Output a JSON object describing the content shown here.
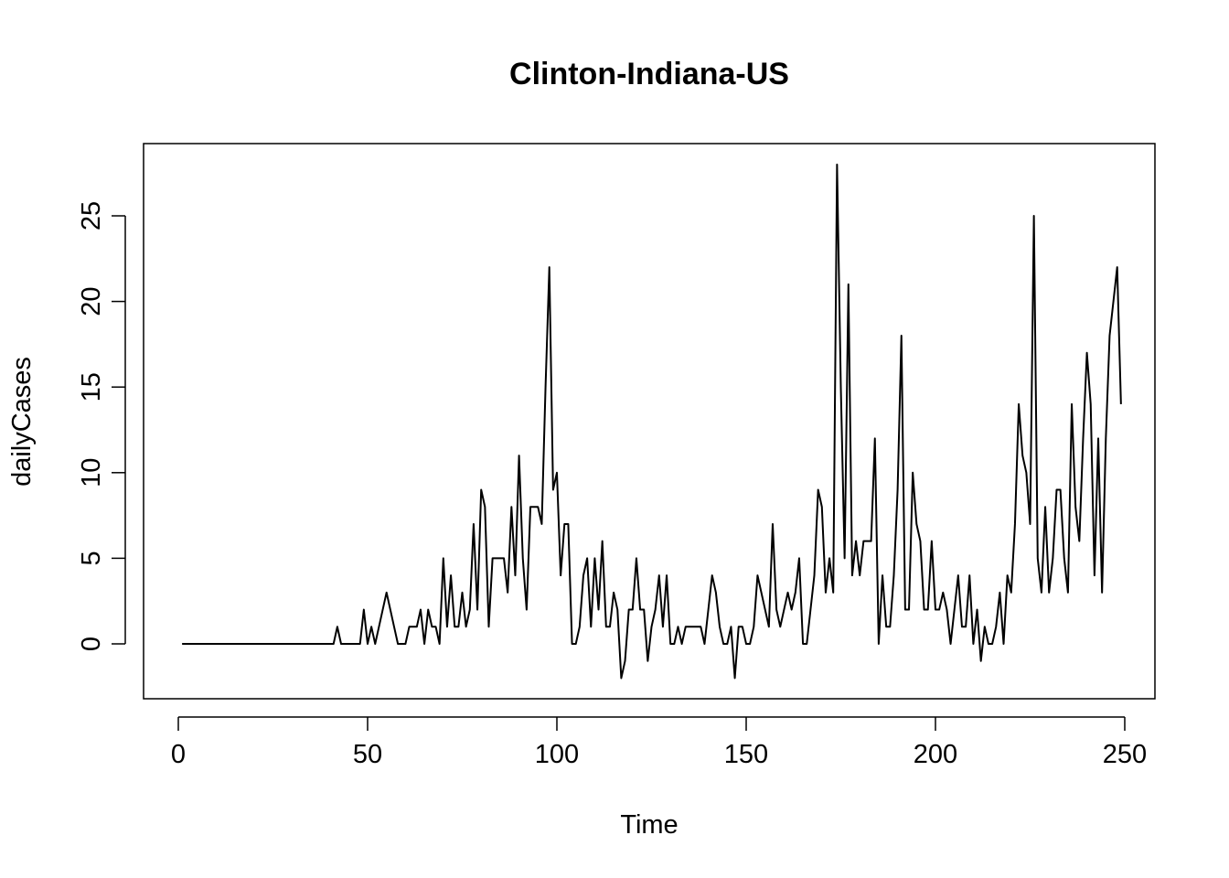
{
  "chart_data": {
    "type": "line",
    "title": "Clinton-Indiana-US",
    "xlabel": "Time",
    "ylabel": "dailyCases",
    "xlim": [
      1,
      248
    ],
    "ylim": [
      -2,
      28
    ],
    "x_ticks": [
      0,
      50,
      100,
      150,
      200,
      250
    ],
    "y_ticks": [
      0,
      5,
      10,
      15,
      20,
      25
    ],
    "x_tick_labels": [
      "0",
      "50",
      "100",
      "150",
      "200",
      "250"
    ],
    "y_tick_labels": [
      "0",
      "5",
      "10",
      "15",
      "20",
      "25"
    ],
    "grid": false,
    "legend": "none",
    "line_color": "#000000",
    "x_start": 1,
    "series": [
      {
        "values": [
          0,
          0,
          0,
          0,
          0,
          0,
          0,
          0,
          0,
          0,
          0,
          0,
          0,
          0,
          0,
          0,
          0,
          0,
          0,
          0,
          0,
          0,
          0,
          0,
          0,
          0,
          0,
          0,
          0,
          0,
          0,
          0,
          0,
          0,
          0,
          0,
          0,
          0,
          0,
          0,
          0,
          1,
          0,
          0,
          0,
          0,
          0,
          0,
          2,
          0,
          1,
          0,
          1,
          2,
          3,
          2,
          1,
          0,
          0,
          0,
          1,
          1,
          1,
          2,
          0,
          2,
          1,
          1,
          0,
          5,
          1,
          4,
          1,
          1,
          3,
          1,
          2,
          7,
          2,
          9,
          8,
          1,
          5,
          5,
          5,
          5,
          3,
          8,
          4,
          11,
          5,
          2,
          8,
          8,
          8,
          7,
          15,
          22,
          9,
          10,
          4,
          7,
          7,
          0,
          0,
          1,
          4,
          5,
          1,
          5,
          2,
          6,
          1,
          1,
          3,
          2,
          -2,
          -1,
          2,
          2,
          5,
          2,
          2,
          -1,
          1,
          2,
          4,
          1,
          4,
          0,
          0,
          1,
          0,
          1,
          1,
          1,
          1,
          1,
          0,
          2,
          4,
          3,
          1,
          0,
          0,
          1,
          -2,
          1,
          1,
          0,
          0,
          1,
          4,
          3,
          2,
          1,
          7,
          2,
          1,
          2,
          3,
          2,
          3,
          5,
          0,
          0,
          2,
          4,
          9,
          8,
          3,
          5,
          3,
          28,
          15,
          5,
          21,
          4,
          6,
          4,
          6,
          6,
          6,
          12,
          0,
          4,
          1,
          1,
          4,
          9,
          18,
          2,
          2,
          10,
          7,
          6,
          2,
          2,
          6,
          2,
          2,
          3,
          2,
          0,
          2,
          4,
          1,
          1,
          4,
          0,
          2,
          -1,
          1,
          0,
          0,
          1,
          3,
          0,
          4,
          3,
          7,
          14,
          11,
          10,
          7,
          25,
          5,
          3,
          8,
          3,
          5,
          9,
          9,
          5,
          3,
          14,
          8,
          6,
          12,
          17,
          14,
          4,
          12,
          3,
          12,
          18,
          20,
          22,
          14
        ]
      }
    ]
  }
}
